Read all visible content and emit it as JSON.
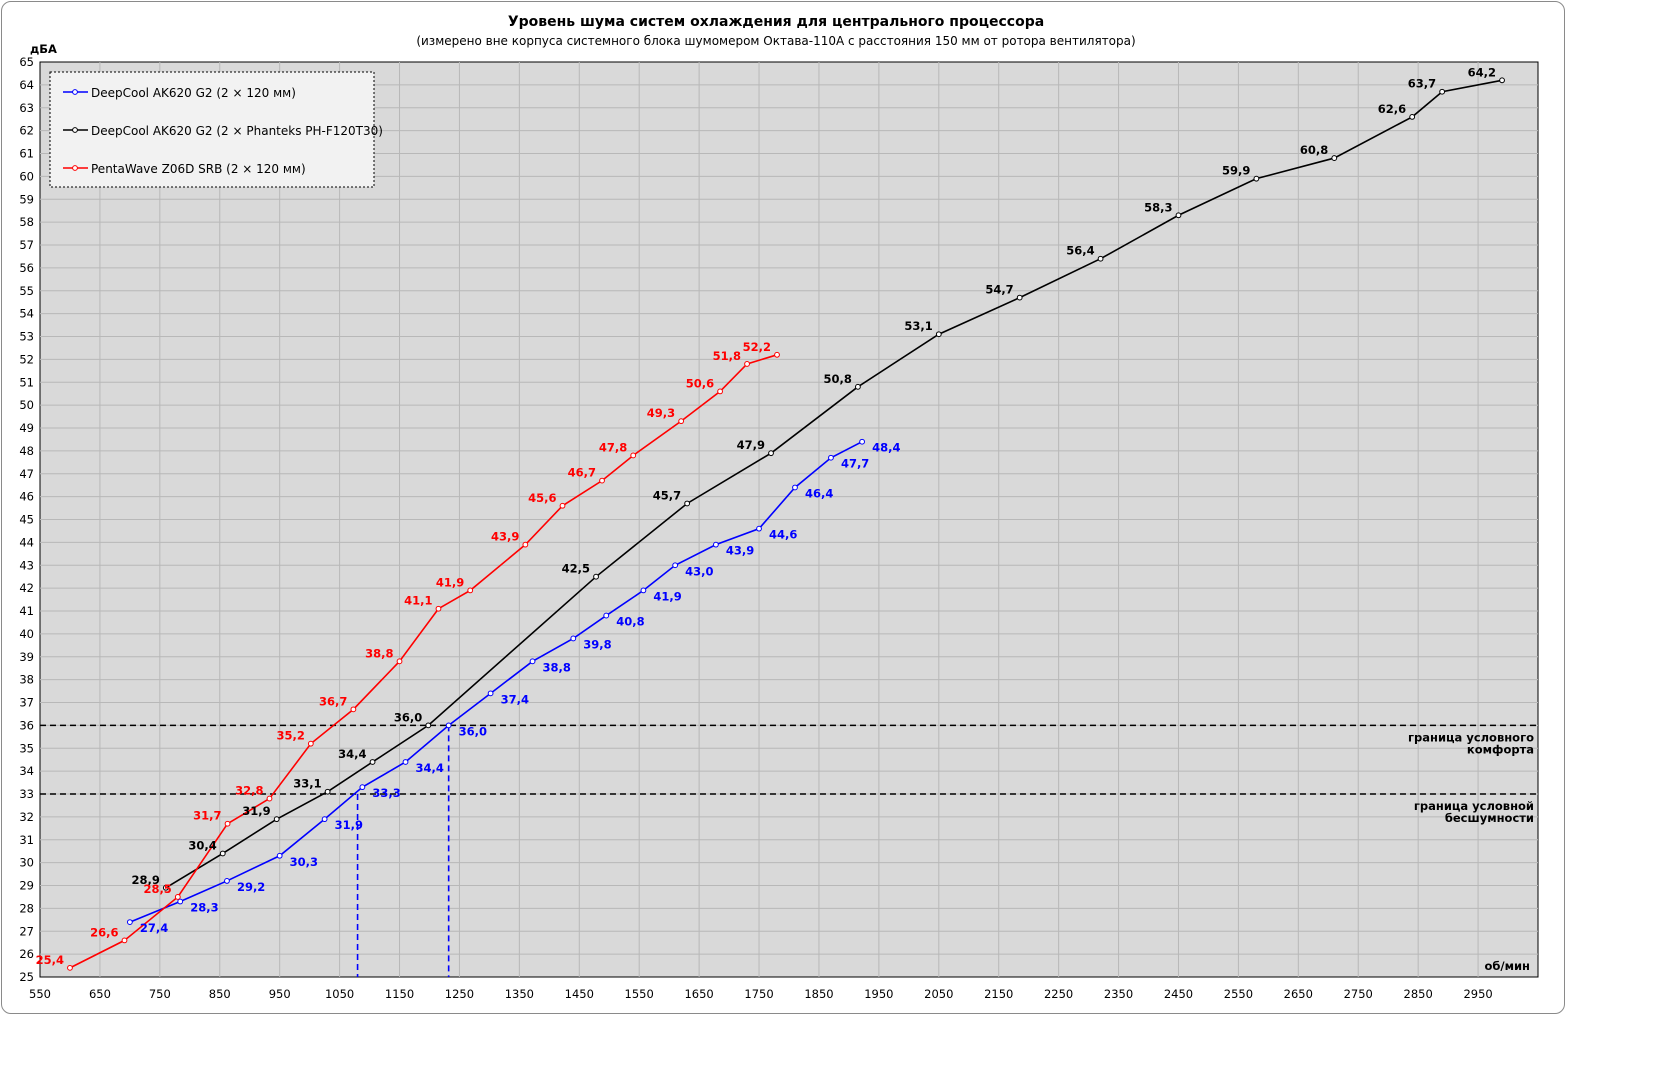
{
  "chart_data": {
    "type": "line",
    "title": "Уровень шума систем охлаждения для центрального процессора",
    "subtitle": "(измерено вне корпуса системного блока шумомером Октава-110А с расстояния 150 мм от ротора вентилятора)",
    "ylabel": "дБА",
    "xlabel": "об/мин",
    "xlim": [
      550,
      3050
    ],
    "ylim": [
      25,
      65
    ],
    "xticks": [
      550,
      650,
      750,
      850,
      950,
      1050,
      1150,
      1250,
      1350,
      1450,
      1550,
      1650,
      1750,
      1850,
      1950,
      2050,
      2150,
      2250,
      2350,
      2450,
      2550,
      2650,
      2750,
      2850,
      2950
    ],
    "yticks": [
      25,
      26,
      27,
      28,
      29,
      30,
      31,
      32,
      33,
      34,
      35,
      36,
      37,
      38,
      39,
      40,
      41,
      42,
      43,
      44,
      45,
      46,
      47,
      48,
      49,
      50,
      51,
      52,
      53,
      54,
      55,
      56,
      57,
      58,
      59,
      60,
      61,
      62,
      63,
      64,
      65
    ],
    "grid": true,
    "legend_position": "top-left",
    "series": [
      {
        "name": "DeepCool AK620 G2 (2 × 120 мм)",
        "color": "#0000ff",
        "x": [
          700,
          784,
          862,
          950,
          1025,
          1088,
          1160,
          1232,
          1302,
          1372,
          1440,
          1495,
          1557,
          1610,
          1678,
          1750,
          1810,
          1870,
          1922
        ],
        "y": [
          27.4,
          28.3,
          29.2,
          30.3,
          31.9,
          33.3,
          34.4,
          36.0,
          37.4,
          38.8,
          39.8,
          40.8,
          41.9,
          43.0,
          43.9,
          44.6,
          46.4,
          47.7,
          48.4
        ],
        "labels": [
          "27,4",
          "28,3",
          "29,2",
          "30,3",
          "31,9",
          "33,3",
          "34,4",
          "36,0",
          "37,4",
          "38,8",
          "39,8",
          "40,8",
          "41,9",
          "43,0",
          "43,9",
          "44,6",
          "46,4",
          "47,7",
          "48,4"
        ]
      },
      {
        "name": "DeepCool AK620 G2 (2 × Phanteks PH-F120T30)",
        "color": "#000000",
        "x": [
          760,
          855,
          945,
          1030,
          1105,
          1198,
          1478,
          1630,
          1770,
          1915,
          2050,
          2185,
          2320,
          2450,
          2580,
          2710,
          2840,
          2890,
          2990
        ],
        "y": [
          28.9,
          30.4,
          31.9,
          33.1,
          34.4,
          36.0,
          42.5,
          45.7,
          47.9,
          50.8,
          53.1,
          54.7,
          56.4,
          58.3,
          59.9,
          60.8,
          62.6,
          63.7,
          64.2
        ],
        "labels": [
          "28,9",
          "30,4",
          "31,9",
          "33,1",
          "34,4",
          "36,0",
          "42,5",
          "45,7",
          "47,9",
          "50,8",
          "53,1",
          "54,7",
          "56,4",
          "58,3",
          "59,9",
          "60,8",
          "62,6",
          "63,7",
          "64,2"
        ]
      },
      {
        "name": "PentaWave Z06D SRB (2 × 120 мм)",
        "color": "#ff0000",
        "x": [
          600,
          691,
          780,
          863,
          933,
          1002,
          1073,
          1150,
          1215,
          1268,
          1360,
          1422,
          1488,
          1540,
          1620,
          1685,
          1730,
          1780
        ],
        "y": [
          25.4,
          26.6,
          28.5,
          31.7,
          32.8,
          35.2,
          36.7,
          38.8,
          41.1,
          41.9,
          43.9,
          45.6,
          46.7,
          47.8,
          49.3,
          50.6,
          51.8,
          52.2
        ],
        "labels": [
          "25,4",
          "26,6",
          "28,5",
          "31,7",
          "32,8",
          "35,2",
          "36,7",
          "38,8",
          "41,1",
          "41,9",
          "43,9",
          "45,6",
          "46,7",
          "47,8",
          "49,3",
          "50,6",
          "51,8",
          "52,2"
        ]
      }
    ],
    "reference_lines": [
      {
        "y": 36,
        "text_line1": "граница  условного",
        "text_line2": "комфорта"
      },
      {
        "y": 33,
        "text_line1": "граница  условной",
        "text_line2": "бесшумности"
      }
    ],
    "drop_lines": [
      {
        "x": 1080,
        "y": 33,
        "color": "#0000ff"
      },
      {
        "x": 1232,
        "y": 36,
        "color": "#0000ff"
      }
    ]
  }
}
